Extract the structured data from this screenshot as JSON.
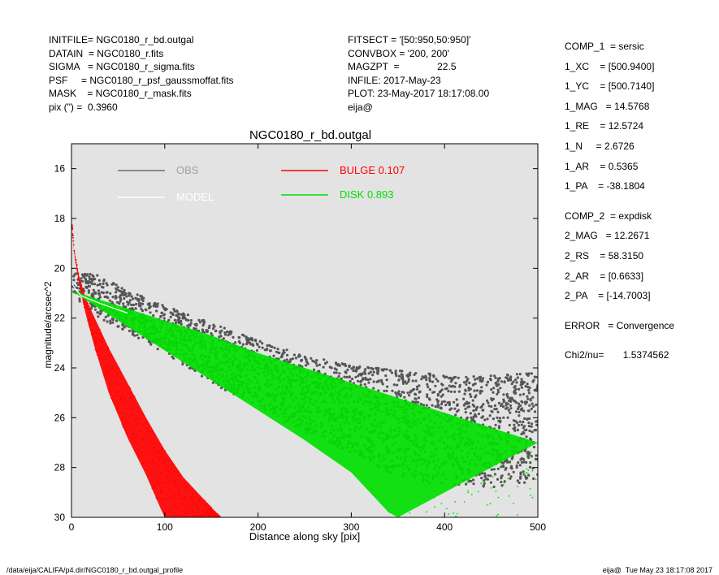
{
  "header_left": [
    "INITFILE= NGC0180_r_bd.outgal",
    "DATAIN  = NGC0180_r.fits",
    "SIGMA   = NGC0180_r_sigma.fits",
    "PSF     = NGC0180_r_psf_gaussmoffat.fits",
    "MASK    = NGC0180_r_mask.fits",
    "pix (\") =  0.3960"
  ],
  "header_mid": [
    "FITSECT = '[50:950,50:950]'",
    "CONVBOX = '200, 200'",
    "MAGZPT  =              22.5",
    "INFILE: 2017-May-23",
    "PLOT: 23-May-2017 18:17:08.00",
    "eija@"
  ],
  "header_right": {
    "comp1": [
      "COMP_1  = sersic",
      "1_XC    = [500.9400]",
      "1_YC    = [500.7140]",
      "1_MAG   = 14.5768",
      "1_RE    = 12.5724",
      "1_N     = 2.6726",
      "1_AR    = 0.5365",
      "1_PA    = -38.1804"
    ],
    "comp2": [
      "COMP_2  = expdisk",
      "2_MAG   = 12.2671",
      "2_RS    = 58.3150",
      "2_AR    = [0.6633]",
      "2_PA    = [-14.7003]"
    ],
    "error": "ERROR   = Convergence",
    "chi2": "Chi2/nu=       1.5374562"
  },
  "footer": {
    "path": "/data/eija/CALIFA/p4.dir/NGC0180_r_bd.outgal_profile",
    "stamp": "eija@  Tue May 23 18:17:08 2017"
  },
  "chart_data": {
    "type": "scatter",
    "title": "NGC0180_r_bd.outgal",
    "xlabel": "Distance along sky [pix]",
    "ylabel": "magnitude/arcsec^2",
    "xlim": [
      0,
      500
    ],
    "ylim": [
      30,
      15
    ],
    "xticks": [
      "0",
      "100",
      "200",
      "300",
      "400",
      "500"
    ],
    "yticks": [
      "16",
      "18",
      "20",
      "22",
      "24",
      "26",
      "28",
      "30"
    ],
    "background": "#e3e3e3",
    "legend": [
      {
        "name": "OBS",
        "color": "#6d6d6d",
        "label_color": "#a0a0a0"
      },
      {
        "name": "MODEL",
        "color": "#ffffff",
        "label_color": "#ffffff"
      },
      {
        "name": "BULGE",
        "value": "0.107",
        "color": "#ff0000",
        "label_color": "#ff0000"
      },
      {
        "name": "DISK",
        "value": "0.893",
        "color": "#00e000",
        "label_color": "#00e000"
      }
    ],
    "series": [
      {
        "name": "OBS",
        "color": "#555555",
        "points": [
          [
            2,
            20.5
          ],
          [
            10,
            21.0
          ],
          [
            20,
            20.6
          ],
          [
            30,
            20.9
          ],
          [
            40,
            21.2
          ],
          [
            60,
            21.6
          ],
          [
            80,
            22.0
          ],
          [
            100,
            22.4
          ],
          [
            150,
            23.0
          ],
          [
            200,
            23.6
          ],
          [
            250,
            24.0
          ],
          [
            300,
            24.4
          ],
          [
            350,
            24.8
          ],
          [
            400,
            25.0
          ],
          [
            450,
            25.1
          ],
          [
            500,
            25.3
          ]
        ],
        "upper": [
          [
            15,
            20.2
          ],
          [
            30,
            20.3
          ],
          [
            60,
            20.9
          ],
          [
            100,
            21.5
          ],
          [
            150,
            22.2
          ],
          [
            200,
            22.9
          ],
          [
            250,
            23.5
          ],
          [
            300,
            23.9
          ],
          [
            350,
            24.1
          ],
          [
            400,
            24.3
          ],
          [
            450,
            24.3
          ],
          [
            500,
            24.2
          ]
        ],
        "lower": [
          [
            15,
            21.4
          ],
          [
            30,
            22.0
          ],
          [
            60,
            22.6
          ],
          [
            100,
            23.4
          ],
          [
            150,
            24.6
          ],
          [
            200,
            25.6
          ],
          [
            250,
            26.6
          ],
          [
            300,
            27.4
          ],
          [
            340,
            28.2
          ],
          [
            380,
            28.6
          ],
          [
            450,
            28.8
          ],
          [
            500,
            28.6
          ]
        ]
      },
      {
        "name": "BULGE",
        "color": "#ff0000",
        "upper_edge": [
          [
            0,
            18.0
          ],
          [
            3,
            19.3
          ],
          [
            8,
            20.3
          ],
          [
            15,
            21.2
          ],
          [
            25,
            22.0
          ],
          [
            40,
            23.2
          ],
          [
            60,
            24.6
          ],
          [
            80,
            26.0
          ],
          [
            100,
            27.3
          ],
          [
            120,
            28.4
          ],
          [
            150,
            29.6
          ],
          [
            160,
            30.0
          ]
        ],
        "lower_edge": [
          [
            0,
            18.0
          ],
          [
            3,
            19.4
          ],
          [
            8,
            20.6
          ],
          [
            15,
            21.8
          ],
          [
            25,
            23.2
          ],
          [
            40,
            25.0
          ],
          [
            60,
            26.8
          ],
          [
            80,
            28.3
          ],
          [
            95,
            29.6
          ],
          [
            100,
            30.0
          ]
        ]
      },
      {
        "name": "DISK",
        "color": "#00e000",
        "upper_edge": [
          [
            0,
            20.9
          ],
          [
            50,
            21.5
          ],
          [
            100,
            22.1
          ],
          [
            150,
            22.7
          ],
          [
            200,
            23.4
          ],
          [
            250,
            24.0
          ],
          [
            300,
            24.6
          ],
          [
            350,
            25.2
          ],
          [
            400,
            25.8
          ],
          [
            450,
            26.4
          ],
          [
            500,
            27.0
          ]
        ],
        "lower_edge": [
          [
            0,
            20.9
          ],
          [
            50,
            22.1
          ],
          [
            100,
            23.3
          ],
          [
            150,
            24.5
          ],
          [
            200,
            25.7
          ],
          [
            250,
            26.9
          ],
          [
            300,
            28.2
          ],
          [
            340,
            29.8
          ],
          [
            350,
            30.0
          ]
        ]
      }
    ]
  }
}
